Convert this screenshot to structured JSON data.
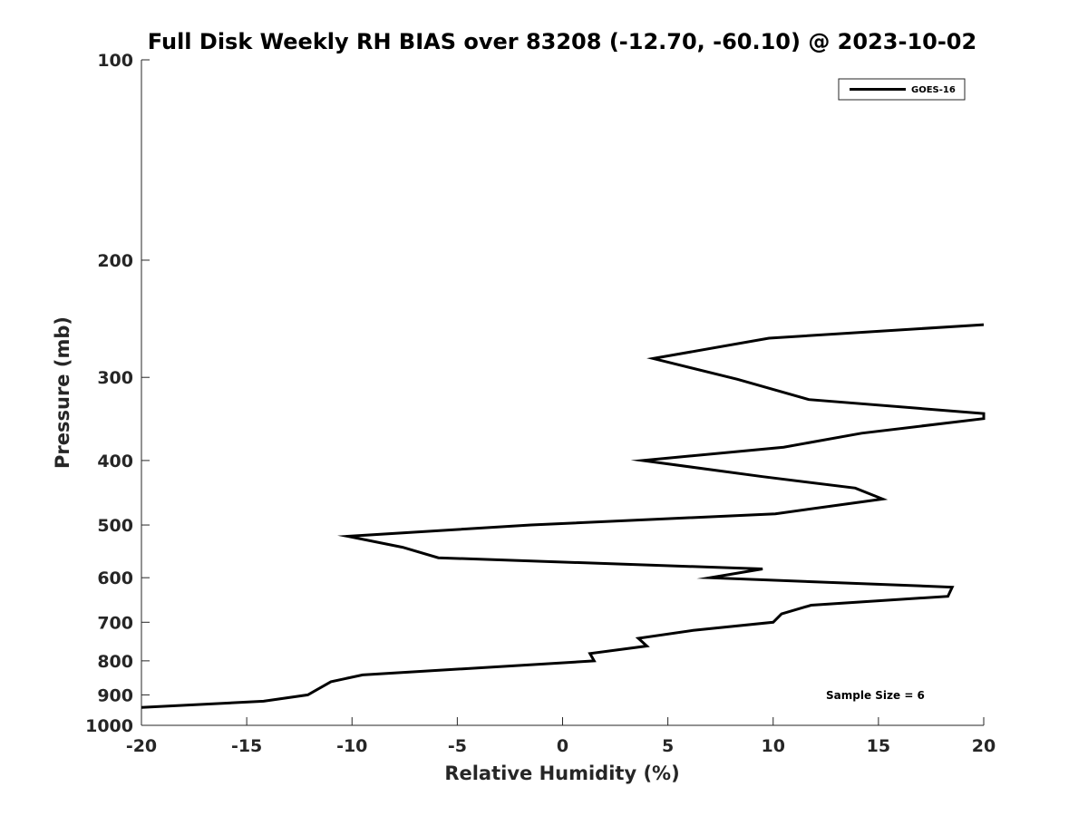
{
  "chart_data": {
    "type": "line",
    "title": "Full Disk Weekly RH BIAS over 83208 (-12.70, -60.10) @ 2023-10-02",
    "xlabel": "Relative Humidity (%)",
    "ylabel": "Pressure (mb)",
    "xlim": [
      -20,
      20
    ],
    "ylim": [
      100,
      1000
    ],
    "yscale": "log",
    "yaxis_reversed": true,
    "x_ticks": [
      -20,
      -15,
      -10,
      -5,
      0,
      5,
      10,
      15,
      20
    ],
    "x_tick_labels": [
      "-20",
      "-15",
      "-10",
      "-5",
      "0",
      "5",
      "10",
      "15",
      "20"
    ],
    "y_ticks": [
      100,
      200,
      300,
      400,
      500,
      600,
      700,
      800,
      900,
      1000
    ],
    "y_tick_labels": [
      "100",
      "200",
      "300",
      "400",
      "500",
      "600",
      "700",
      "800",
      "900",
      "1000"
    ],
    "grid": false,
    "legend_position": "top-right",
    "annotation": "Sample Size = 6",
    "series": [
      {
        "name": "GOES-16",
        "color": "#000000",
        "x": [
          20.0,
          9.8,
          4.3,
          8.3,
          11.7,
          20.0,
          20.0,
          14.2,
          10.5,
          3.8,
          9.5,
          13.9,
          15.2,
          10.1,
          -1.5,
          -10.2,
          -7.6,
          -5.9,
          9.5,
          7.0,
          18.5,
          18.3,
          11.8,
          10.4,
          10.0,
          6.2,
          3.6,
          4.0,
          1.3,
          1.5,
          -9.5,
          -11.0,
          -12.1,
          -14.2,
          -20.0
        ],
        "y": [
          250,
          262,
          281,
          302,
          324,
          340,
          346,
          364,
          382,
          400,
          423,
          440,
          457,
          481,
          500,
          520,
          540,
          560,
          582,
          600,
          620,
          640,
          660,
          680,
          700,
          720,
          740,
          760,
          780,
          800,
          840,
          860,
          900,
          920,
          940
        ]
      }
    ]
  }
}
